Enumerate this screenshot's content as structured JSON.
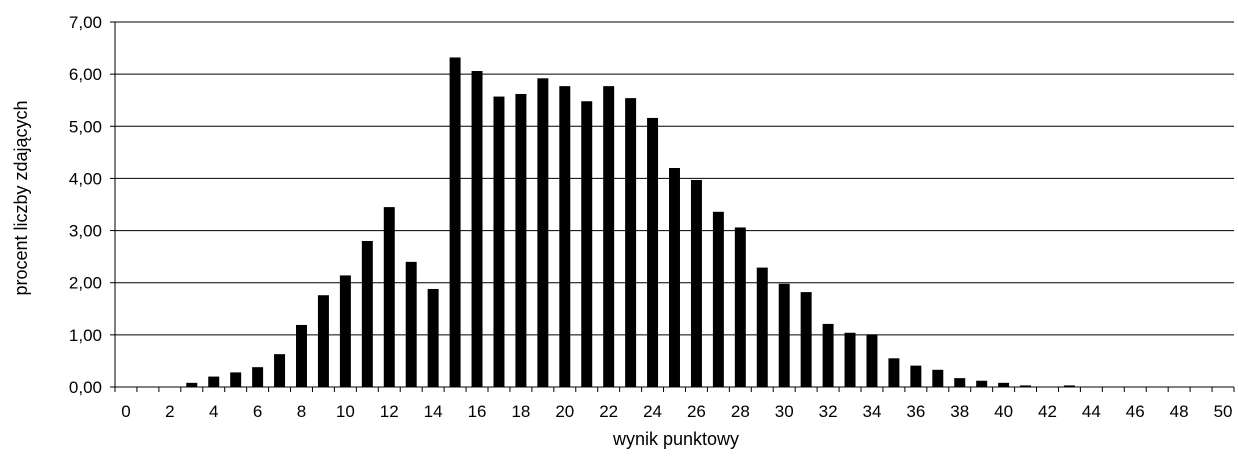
{
  "chart_data": {
    "type": "bar",
    "xlabel": "wynik punktowy",
    "ylabel": "procent liczby zdających",
    "ylim": [
      0,
      7
    ],
    "xlim": [
      0,
      50
    ],
    "grid": "horizontal",
    "bar_color": "#000000",
    "y_ticks": [
      "0,00",
      "1,00",
      "2,00",
      "3,00",
      "4,00",
      "5,00",
      "6,00",
      "7,00"
    ],
    "x_ticks": [
      "0",
      "2",
      "4",
      "6",
      "8",
      "10",
      "12",
      "14",
      "16",
      "18",
      "20",
      "22",
      "24",
      "26",
      "28",
      "30",
      "32",
      "34",
      "36",
      "38",
      "40",
      "42",
      "44",
      "46",
      "48",
      "50"
    ],
    "categories": [
      0,
      1,
      2,
      3,
      4,
      5,
      6,
      7,
      8,
      9,
      10,
      11,
      12,
      13,
      14,
      15,
      16,
      17,
      18,
      19,
      20,
      21,
      22,
      23,
      24,
      25,
      26,
      27,
      28,
      29,
      30,
      31,
      32,
      33,
      34,
      35,
      36,
      37,
      38,
      39,
      40,
      41,
      42,
      43,
      44,
      45,
      46,
      47,
      48,
      49,
      50
    ],
    "values": [
      0,
      0,
      0,
      0.08,
      0.2,
      0.28,
      0.38,
      0.63,
      1.19,
      1.76,
      2.14,
      2.8,
      3.45,
      2.4,
      1.88,
      6.32,
      6.06,
      5.57,
      5.62,
      5.92,
      5.77,
      5.48,
      5.77,
      5.54,
      5.16,
      4.2,
      3.97,
      3.36,
      3.06,
      2.29,
      1.98,
      1.82,
      1.21,
      1.04,
      1.01,
      0.55,
      0.41,
      0.33,
      0.17,
      0.12,
      0.08,
      0.03,
      0,
      0.03,
      0,
      0,
      0,
      0,
      0,
      0,
      0
    ]
  }
}
